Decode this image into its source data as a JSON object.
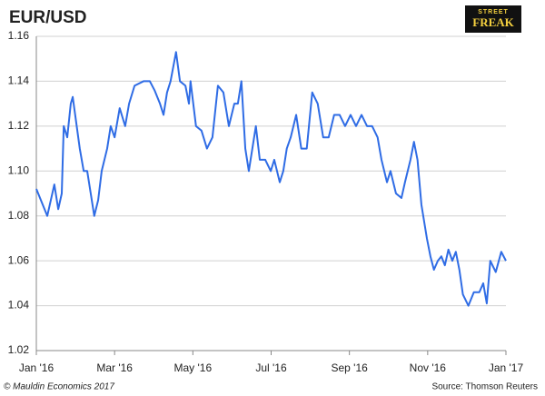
{
  "chart_data": {
    "type": "line",
    "title": "EUR/USD",
    "brand": [
      "STREET",
      "FREAK"
    ],
    "footer": [
      "© Mauldin Economics 2017",
      "Source: Thomson Reuters"
    ],
    "color": "#2f6ce5",
    "x": [
      0,
      0.28,
      0.46,
      0.56,
      0.65,
      0.7,
      0.79,
      0.88,
      0.93,
      1.11,
      1.21,
      1.3,
      1.39,
      1.48,
      1.58,
      1.67,
      1.81,
      1.9,
      2.0,
      2.13,
      2.27,
      2.37,
      2.51,
      2.74,
      2.9,
      3.02,
      3.16,
      3.25,
      3.34,
      3.43,
      3.57,
      3.67,
      3.81,
      3.9,
      3.94,
      4.08,
      4.22,
      4.36,
      4.5,
      4.64,
      4.78,
      4.92,
      5.06,
      5.15,
      5.24,
      5.34,
      5.43,
      5.52,
      5.61,
      5.71,
      5.85,
      5.99,
      6.08,
      6.22,
      6.31,
      6.4,
      6.5,
      6.64,
      6.77,
      6.91,
      7.05,
      7.19,
      7.33,
      7.47,
      7.61,
      7.75,
      7.89,
      8.03,
      8.17,
      8.31,
      8.45,
      8.58,
      8.72,
      8.82,
      8.96,
      9.05,
      9.19,
      9.33,
      9.42,
      9.56,
      9.65,
      9.74,
      9.84,
      9.98,
      10.07,
      10.16,
      10.26,
      10.35,
      10.44,
      10.53,
      10.63,
      10.72,
      10.81,
      10.9,
      11.04,
      11.18,
      11.32,
      11.42,
      11.51,
      11.6,
      11.74,
      11.88,
      12.0
    ],
    "values": [
      1.092,
      1.08,
      1.094,
      1.083,
      1.09,
      1.12,
      1.115,
      1.13,
      1.133,
      1.11,
      1.1,
      1.1,
      1.09,
      1.08,
      1.087,
      1.1,
      1.11,
      1.12,
      1.115,
      1.128,
      1.12,
      1.13,
      1.138,
      1.14,
      1.14,
      1.136,
      1.13,
      1.125,
      1.135,
      1.14,
      1.153,
      1.14,
      1.138,
      1.13,
      1.14,
      1.12,
      1.118,
      1.11,
      1.115,
      1.138,
      1.135,
      1.12,
      1.13,
      1.13,
      1.14,
      1.11,
      1.1,
      1.11,
      1.12,
      1.105,
      1.105,
      1.1,
      1.105,
      1.095,
      1.1,
      1.11,
      1.115,
      1.125,
      1.11,
      1.11,
      1.135,
      1.13,
      1.115,
      1.115,
      1.125,
      1.125,
      1.12,
      1.125,
      1.12,
      1.125,
      1.12,
      1.12,
      1.115,
      1.105,
      1.095,
      1.1,
      1.09,
      1.088,
      1.095,
      1.105,
      1.113,
      1.105,
      1.085,
      1.07,
      1.062,
      1.056,
      1.06,
      1.062,
      1.058,
      1.065,
      1.06,
      1.064,
      1.056,
      1.045,
      1.04,
      1.046,
      1.046,
      1.05,
      1.041,
      1.06,
      1.055,
      1.064,
      1.06
    ],
    "xlim": [
      0,
      12
    ],
    "xticks": [
      {
        "value": 0,
        "label": "Jan '16"
      },
      {
        "value": 2,
        "label": "Mar '16"
      },
      {
        "value": 4,
        "label": "May '16"
      },
      {
        "value": 6,
        "label": "Jul '16"
      },
      {
        "value": 8,
        "label": "Sep '16"
      },
      {
        "value": 10,
        "label": "Nov '16"
      },
      {
        "value": 12,
        "label": "Jan '17"
      }
    ],
    "ylim": [
      1.02,
      1.16
    ],
    "yticks": [
      1.02,
      1.04,
      1.06,
      1.08,
      {
        "value": 1.1,
        "label": "1.10"
      },
      1.12,
      1.14,
      1.16
    ],
    "grid": true
  }
}
